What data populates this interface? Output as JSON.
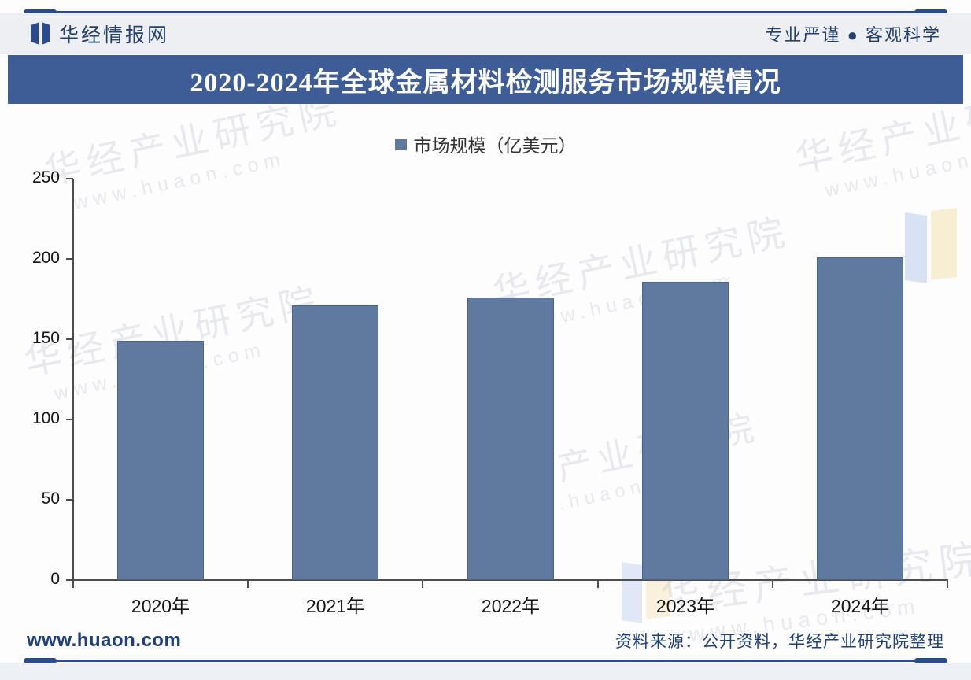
{
  "header": {
    "brand": "华经情报网",
    "slogan": "专业严谨 ● 客观科学",
    "logo_icon": "open-book-logo"
  },
  "title_bar": {
    "title": "2020-2024年全球金属材料检测服务市场规模情况",
    "bg_color": "#3e5d96",
    "text_color": "#ffffff"
  },
  "chart_data": {
    "type": "bar",
    "title": "2020-2024年全球金属材料检测服务市场规模情况",
    "legend_label": "市场规模（亿美元）",
    "legend_position": "top",
    "categories": [
      "2020年",
      "2021年",
      "2022年",
      "2023年",
      "2024年"
    ],
    "values": [
      149,
      171,
      176,
      186,
      201
    ],
    "series": [
      {
        "name": "市场规模（亿美元）",
        "values": [
          149,
          171,
          176,
          186,
          201
        ]
      }
    ],
    "xlabel": "",
    "ylabel": "",
    "ylim": [
      0,
      250
    ],
    "yticks": [
      0,
      50,
      100,
      150,
      200,
      250
    ],
    "grid": false,
    "bar_color": "#60799f"
  },
  "watermark": {
    "line1": "华经产业研究院",
    "line2": "www.huaon.com"
  },
  "footer": {
    "website": "www.huaon.com",
    "source": "资料来源：公开资料，华经产业研究院整理"
  },
  "colors": {
    "accent_blue": "#3e5d96",
    "rule_blue": "#2b4c8c",
    "bar_blue": "#60799f",
    "navy_text": "#24406e",
    "footer_text": "#1e4077",
    "axis": "#4d4d4d",
    "band_bg": "#edeff3"
  }
}
